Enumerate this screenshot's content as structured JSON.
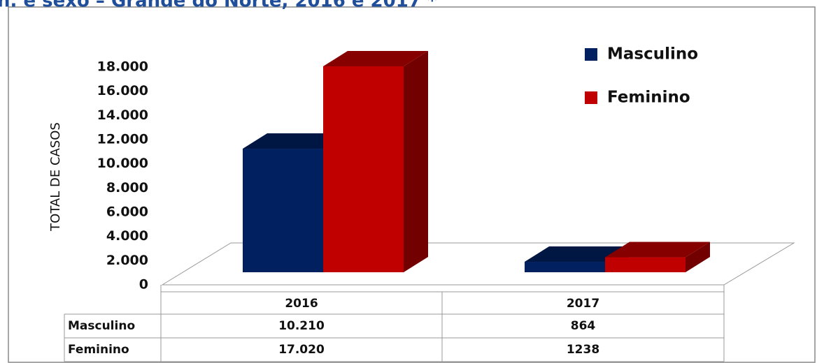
{
  "chart_data": {
    "type": "bar3d",
    "title": "n. e sexo – Grande do Norte, 2016 e 2017 *",
    "y_label": "TOTAL DE CASOS",
    "categories": [
      "2016",
      "2017"
    ],
    "series": [
      {
        "name": "Masculino",
        "color": "#002060",
        "values": [
          10210,
          864
        ],
        "value_labels": [
          "10.210",
          "864"
        ]
      },
      {
        "name": "Feminino",
        "color": "#c00000",
        "values": [
          17020,
          1238
        ],
        "value_labels": [
          "17.020",
          "1238"
        ]
      }
    ],
    "ylim": [
      0,
      18000
    ],
    "yticks": [
      0,
      {
        "value": 2000,
        "label": "2.000"
      },
      {
        "value": 4000,
        "label": "4.000"
      },
      {
        "value": 6000,
        "label": "6.000"
      },
      {
        "value": 8000,
        "label": "8.000"
      },
      {
        "value": 10000,
        "label": "10.000"
      },
      {
        "value": 12000,
        "label": "12.000"
      },
      {
        "value": 14000,
        "label": "14.000"
      },
      {
        "value": 16000,
        "label": "16.000"
      },
      {
        "value": 18000,
        "label": "18.000"
      }
    ],
    "legend": "top-right"
  }
}
